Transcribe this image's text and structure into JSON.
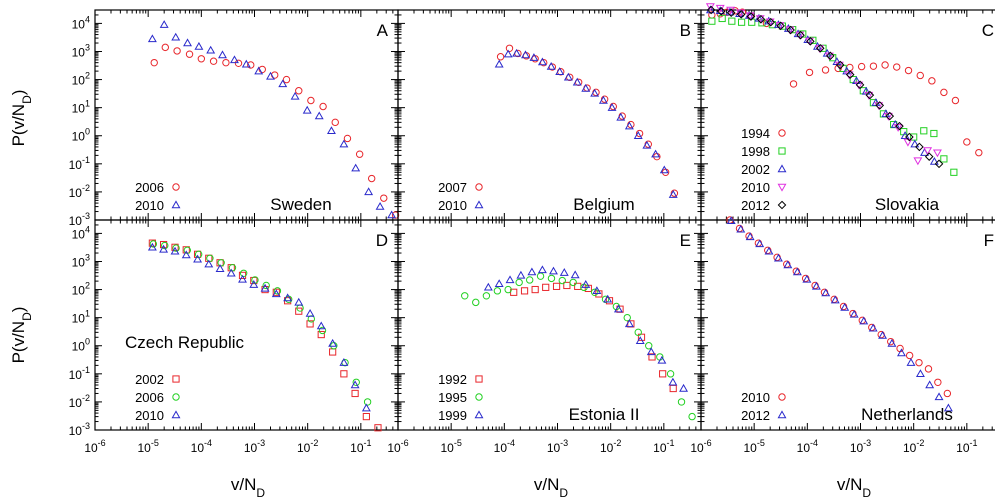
{
  "colors": {
    "red": "#e8262b",
    "green": "#22d022",
    "blue": "#2a2acb",
    "magenta": "#e030e0",
    "black": "#000000"
  },
  "axes": {
    "xlabel_base": "v/N",
    "xlabel_sub": "D",
    "ylabel_base": "P(v/N",
    "ylabel_sub": "D",
    "ylabel_end": ")",
    "y_ticks": [
      {
        "base": "10",
        "exp": "-3",
        "pow": -3
      },
      {
        "base": "10",
        "exp": "-2",
        "pow": -2
      },
      {
        "base": "10",
        "exp": "-1",
        "pow": -1
      },
      {
        "base": "10",
        "exp": "0",
        "pow": 0
      },
      {
        "base": "10",
        "exp": "1",
        "pow": 1
      },
      {
        "base": "10",
        "exp": "2",
        "pow": 2
      },
      {
        "base": "10",
        "exp": "3",
        "pow": 3
      },
      {
        "base": "10",
        "exp": "4",
        "pow": 4
      }
    ],
    "x_ticks": [
      {
        "base": "10",
        "exp": "-6",
        "pow": -6
      },
      {
        "base": "10",
        "exp": "-5",
        "pow": -5
      },
      {
        "base": "10",
        "exp": "-4",
        "pow": -4
      },
      {
        "base": "10",
        "exp": "-3",
        "pow": -3
      },
      {
        "base": "10",
        "exp": "-2",
        "pow": -2
      },
      {
        "base": "10",
        "exp": "-1",
        "pow": -1
      }
    ]
  },
  "chart_data": [
    {
      "type": "scatter",
      "panel": "A",
      "label": "Sweden",
      "xscale": "log",
      "yscale": "log",
      "xlim": [
        1e-06,
        0.5
      ],
      "ylim": [
        0.001,
        30000
      ],
      "series": [
        {
          "name": "2006",
          "marker": "circle",
          "color": "red",
          "x": [
            1.3e-05,
            2.1e-05,
            3.5e-05,
            6e-05,
            0.0001,
            0.00017,
            0.00029,
            0.0005,
            0.00085,
            0.0014,
            0.0024,
            0.004,
            0.0068,
            0.0115,
            0.0195,
            0.033,
            0.056,
            0.095,
            0.16,
            0.27,
            0.45
          ],
          "y": [
            400,
            1400,
            1050,
            800,
            550,
            450,
            400,
            380,
            330,
            230,
            145,
            100,
            40,
            18,
            11,
            3,
            0.8,
            0.22,
            0.03,
            0.006,
            0.0015
          ]
        },
        {
          "name": "2010",
          "marker": "triangle",
          "color": "blue",
          "x": [
            1.2e-05,
            2e-05,
            3.3e-05,
            5.5e-05,
            9e-05,
            0.00015,
            0.00025,
            0.00042,
            0.0007,
            0.0012,
            0.002,
            0.0034,
            0.0058,
            0.0098,
            0.0165,
            0.028,
            0.048,
            0.08,
            0.14,
            0.23,
            0.38
          ],
          "y": [
            2800,
            9000,
            3200,
            2000,
            1500,
            1100,
            750,
            500,
            350,
            200,
            130,
            70,
            25,
            8,
            5,
            1.5,
            0.5,
            0.07,
            0.01,
            0.003,
            0.0015
          ]
        }
      ]
    },
    {
      "type": "scatter",
      "panel": "B",
      "label": "Belgium",
      "xscale": "log",
      "yscale": "log",
      "xlim": [
        1e-06,
        0.5
      ],
      "ylim": [
        0.001,
        30000
      ],
      "series": [
        {
          "name": "2007",
          "marker": "circle",
          "color": "red",
          "x": [
            8.5e-05,
            0.000125,
            0.00018,
            0.00026,
            0.00038,
            0.00055,
            0.0008,
            0.00115,
            0.0017,
            0.0025,
            0.0036,
            0.0053,
            0.0077,
            0.0112,
            0.0165,
            0.024,
            0.035,
            0.051,
            0.074,
            0.108,
            0.158
          ],
          "y": [
            650,
            1300,
            850,
            700,
            550,
            400,
            280,
            190,
            120,
            80,
            50,
            35,
            20,
            11,
            5,
            2.5,
            1.2,
            0.5,
            0.18,
            0.05,
            0.009
          ]
        },
        {
          "name": "2010",
          "marker": "triangle",
          "color": "blue",
          "x": [
            8e-05,
            0.000118,
            0.00017,
            0.00025,
            0.00036,
            0.00052,
            0.00076,
            0.0011,
            0.0016,
            0.00235,
            0.0034,
            0.005,
            0.0073,
            0.0106,
            0.0155,
            0.0225,
            0.033,
            0.048,
            0.07,
            0.102,
            0.15
          ],
          "y": [
            350,
            800,
            850,
            750,
            600,
            420,
            290,
            190,
            120,
            80,
            48,
            32,
            18,
            10,
            4.5,
            2.2,
            1,
            0.45,
            0.22,
            0.06,
            0.008
          ]
        }
      ]
    },
    {
      "type": "scatter",
      "panel": "C",
      "label": "Slovakia",
      "xscale": "log",
      "yscale": "log",
      "xlim": [
        1e-06,
        0.5
      ],
      "ylim": [
        0.001,
        30000
      ],
      "series": [
        {
          "name": "1994",
          "marker": "circle",
          "color": "red",
          "x": [
            1.6e-06,
            2.3e-06,
            3.1e-06,
            4.4e-06,
            6e-06,
            8.5e-06,
            1.7e-05,
            5.5e-05,
            0.00011,
            0.00022,
            0.00038,
            0.00063,
            0.00105,
            0.00175,
            0.0029,
            0.0048,
            0.008,
            0.0133,
            0.022,
            0.037,
            0.061,
            0.1,
            0.168
          ],
          "y": [
            20000,
            22000,
            25000,
            28000,
            25000,
            18000,
            10000,
            70,
            180,
            220,
            250,
            270,
            290,
            300,
            330,
            280,
            210,
            140,
            90,
            35,
            18,
            0.6,
            0.25
          ]
        },
        {
          "name": "1998",
          "marker": "square",
          "color": "green",
          "x": [
            1.6e-06,
            2.5e-06,
            3.8e-06,
            5.8e-06,
            9e-06,
            1.4e-05,
            2.2e-05,
            3.4e-05,
            5.3e-05,
            8.2e-05,
            0.000127,
            0.000197,
            0.0003,
            0.00047,
            0.00073,
            0.00113,
            0.00175,
            0.0027,
            0.0042,
            0.0065,
            0.01,
            0.0155,
            0.024,
            0.037,
            0.057
          ],
          "y": [
            12000,
            15000,
            12000,
            11000,
            11000,
            10500,
            9000,
            8000,
            6000,
            4200,
            2500,
            1300,
            600,
            250,
            100,
            40,
            15,
            6,
            2.5,
            1.4,
            0.9,
            1.5,
            1.2,
            0.15,
            0.05
          ]
        },
        {
          "name": "2002",
          "marker": "triangle",
          "color": "blue",
          "x": [
            1.5e-06,
            2.3e-06,
            3.5e-06,
            5.3e-06,
            8.1e-06,
            1.23e-05,
            1.88e-05,
            2.86e-05,
            4.4e-05,
            6.7e-05,
            0.000102,
            0.000155,
            0.000236,
            0.00036,
            0.00055,
            0.00084,
            0.00128,
            0.00195,
            0.003,
            0.0045,
            0.0069,
            0.0105,
            0.016,
            0.0245
          ],
          "y": [
            30000,
            28000,
            25000,
            22000,
            19000,
            15000,
            12000,
            9000,
            6500,
            4200,
            2600,
            1500,
            850,
            430,
            200,
            90,
            38,
            15,
            6,
            2.5,
            1,
            0.5,
            0.25,
            0.12
          ]
        },
        {
          "name": "2010",
          "marker": "invtriangle",
          "color": "magenta",
          "x": [
            1.5e-06,
            2.3e-06,
            3.6e-06,
            5.5e-06,
            8.4e-06,
            1.3e-05,
            2e-05,
            3.05e-05,
            4.7e-05,
            7.2e-05,
            0.00011,
            0.00017,
            0.00026,
            0.0004,
            0.00061,
            0.00093,
            0.00143,
            0.0022,
            0.00335,
            0.0051,
            0.0078,
            0.012,
            0.0183,
            0.028
          ],
          "y": [
            40000,
            35000,
            30000,
            24000,
            19000,
            15000,
            11500,
            8500,
            6000,
            3900,
            2400,
            1300,
            700,
            330,
            150,
            65,
            28,
            12,
            5,
            2,
            0.6,
            0.13,
            0.3,
            0.25
          ]
        },
        {
          "name": "2012",
          "marker": "diamond",
          "color": "black",
          "x": [
            1.55e-06,
            2.4e-06,
            3.7e-06,
            5.7e-06,
            8.7e-06,
            1.34e-05,
            2.05e-05,
            3.15e-05,
            4.85e-05,
            7.45e-05,
            0.000114,
            0.000175,
            0.00027,
            0.000415,
            0.00064,
            0.00098,
            0.0015,
            0.0023,
            0.00355,
            0.0054,
            0.0083,
            0.0128,
            0.0196,
            0.03
          ],
          "y": [
            30000,
            27000,
            24000,
            21000,
            17500,
            14000,
            11000,
            8200,
            5800,
            3800,
            2300,
            1300,
            700,
            330,
            150,
            65,
            28,
            12,
            5,
            2.2,
            0.9,
            0.4,
            0.18,
            0.1
          ]
        }
      ]
    },
    {
      "type": "scatter",
      "panel": "D",
      "label": "Czech Republic",
      "xscale": "log",
      "yscale": "log",
      "xlim": [
        1e-06,
        0.5
      ],
      "ylim": [
        0.001,
        30000
      ],
      "series": [
        {
          "name": "2002",
          "marker": "square",
          "color": "red",
          "x": [
            1.2e-05,
            1.95e-05,
            3.2e-05,
            5.2e-05,
            8.5e-05,
            0.000138,
            0.000225,
            0.000365,
            0.000595,
            0.00097,
            0.00158,
            0.00257,
            0.0042,
            0.0068,
            0.0111,
            0.018,
            0.0295,
            0.048,
            0.078,
            0.127,
            0.21
          ],
          "y": [
            4500,
            4000,
            3200,
            2600,
            1800,
            1300,
            900,
            600,
            320,
            210,
            100,
            80,
            40,
            17,
            6,
            2.5,
            0.6,
            0.1,
            0.02,
            0.003,
            0.0012
          ]
        },
        {
          "name": "2006",
          "marker": "circle",
          "color": "green",
          "x": [
            1.25e-05,
            2.05e-05,
            3.35e-05,
            5.45e-05,
            8.9e-05,
            0.000145,
            0.000236,
            0.000385,
            0.000625,
            0.00102,
            0.00166,
            0.0027,
            0.0044,
            0.0072,
            0.0117,
            0.019,
            0.031,
            0.0505,
            0.082,
            0.134
          ],
          "y": [
            4200,
            3700,
            3000,
            2500,
            1800,
            1300,
            900,
            600,
            380,
            220,
            140,
            90,
            45,
            22,
            9,
            3.5,
            1,
            0.25,
            0.05,
            0.01
          ]
        },
        {
          "name": "2010",
          "marker": "triangle",
          "color": "blue",
          "x": [
            1.2e-05,
            1.95e-05,
            3.2e-05,
            5.2e-05,
            8.5e-05,
            0.000138,
            0.000225,
            0.000365,
            0.000595,
            0.00097,
            0.00158,
            0.00257,
            0.0042,
            0.0068,
            0.0111,
            0.018,
            0.0295,
            0.048,
            0.078,
            0.127
          ],
          "y": [
            3200,
            2700,
            2300,
            1700,
            1200,
            800,
            550,
            380,
            230,
            150,
            110,
            70,
            50,
            35,
            14,
            5,
            1.2,
            0.25,
            0.04,
            0.006
          ]
        }
      ]
    },
    {
      "type": "scatter",
      "panel": "E",
      "label": "Estonia II",
      "xscale": "log",
      "yscale": "log",
      "xlim": [
        1e-06,
        0.5
      ],
      "ylim": [
        0.001,
        30000
      ],
      "series": [
        {
          "name": "1992",
          "marker": "square",
          "color": "red",
          "x": [
            0.00015,
            0.00024,
            0.00038,
            0.0006,
            0.00096,
            0.0015,
            0.0024,
            0.0038,
            0.006,
            0.0095,
            0.015,
            0.024,
            0.038,
            0.06,
            0.095,
            0.15
          ],
          "y": [
            80,
            90,
            100,
            120,
            130,
            140,
            130,
            110,
            70,
            40,
            20,
            6,
            2,
            0.4,
            0.1,
            0.03
          ]
        },
        {
          "name": "1995",
          "marker": "circle",
          "color": "green",
          "x": [
            1.8e-05,
            2.9e-05,
            4.6e-05,
            7.4e-05,
            0.000118,
            0.00019,
            0.0003,
            0.00048,
            0.00077,
            0.00123,
            0.00197,
            0.00315,
            0.005,
            0.008,
            0.0128,
            0.0205,
            0.033,
            0.052,
            0.084,
            0.134,
            0.215,
            0.34
          ],
          "y": [
            60,
            35,
            60,
            90,
            100,
            180,
            220,
            300,
            250,
            210,
            180,
            120,
            80,
            45,
            25,
            10,
            3,
            1,
            0.4,
            0.1,
            0.01,
            0.003
          ]
        },
        {
          "name": "1999",
          "marker": "triangle",
          "color": "blue",
          "x": [
            5e-05,
            8e-05,
            0.000128,
            0.000205,
            0.00033,
            0.00052,
            0.00084,
            0.00134,
            0.00215,
            0.0034,
            0.0055,
            0.0088,
            0.014,
            0.0225,
            0.036,
            0.058,
            0.092,
            0.148,
            0.235
          ],
          "y": [
            120,
            160,
            220,
            320,
            420,
            500,
            450,
            400,
            330,
            150,
            90,
            45,
            20,
            6,
            1.5,
            0.6,
            0.3,
            0.05,
            0.03
          ]
        }
      ]
    },
    {
      "type": "scatter",
      "panel": "F",
      "label": "Netherlands",
      "xscale": "log",
      "yscale": "log",
      "xlim": [
        1e-06,
        0.5
      ],
      "ylim": [
        0.001,
        30000
      ],
      "series": [
        {
          "name": "2010",
          "marker": "circle",
          "color": "red",
          "x": [
            3.5e-06,
            5.3e-06,
            8e-06,
            1.2e-05,
            1.8e-05,
            2.7e-05,
            4.1e-05,
            6.2e-05,
            9.3e-05,
            0.00014,
            0.00021,
            0.00032,
            0.00048,
            0.00072,
            0.00108,
            0.00163,
            0.00245,
            0.0037,
            0.00555,
            0.0084,
            0.0126,
            0.019,
            0.0285,
            0.043
          ],
          "y": [
            30000,
            15000,
            8000,
            4500,
            2500,
            1400,
            800,
            450,
            250,
            140,
            80,
            45,
            25,
            14,
            8,
            4.5,
            2.5,
            1.4,
            0.8,
            0.45,
            0.25,
            0.15,
            0.05,
            0.02
          ]
        },
        {
          "name": "2012",
          "marker": "triangle",
          "color": "blue",
          "x": [
            3.7e-06,
            5.6e-06,
            8.4e-06,
            1.27e-05,
            1.9e-05,
            2.86e-05,
            4.3e-05,
            6.5e-05,
            9.8e-05,
            0.000148,
            0.000222,
            0.000335,
            0.000505,
            0.00076,
            0.00115,
            0.00173,
            0.0026,
            0.0039,
            0.0059,
            0.0089,
            0.0134,
            0.02,
            0.03,
            0.045
          ],
          "y": [
            28000,
            14000,
            7500,
            4200,
            2300,
            1300,
            750,
            420,
            230,
            130,
            75,
            42,
            23,
            13,
            7.5,
            4.2,
            2.3,
            1.2,
            0.55,
            0.25,
            0.1,
            0.04,
            0.015,
            0.006
          ]
        }
      ]
    }
  ]
}
